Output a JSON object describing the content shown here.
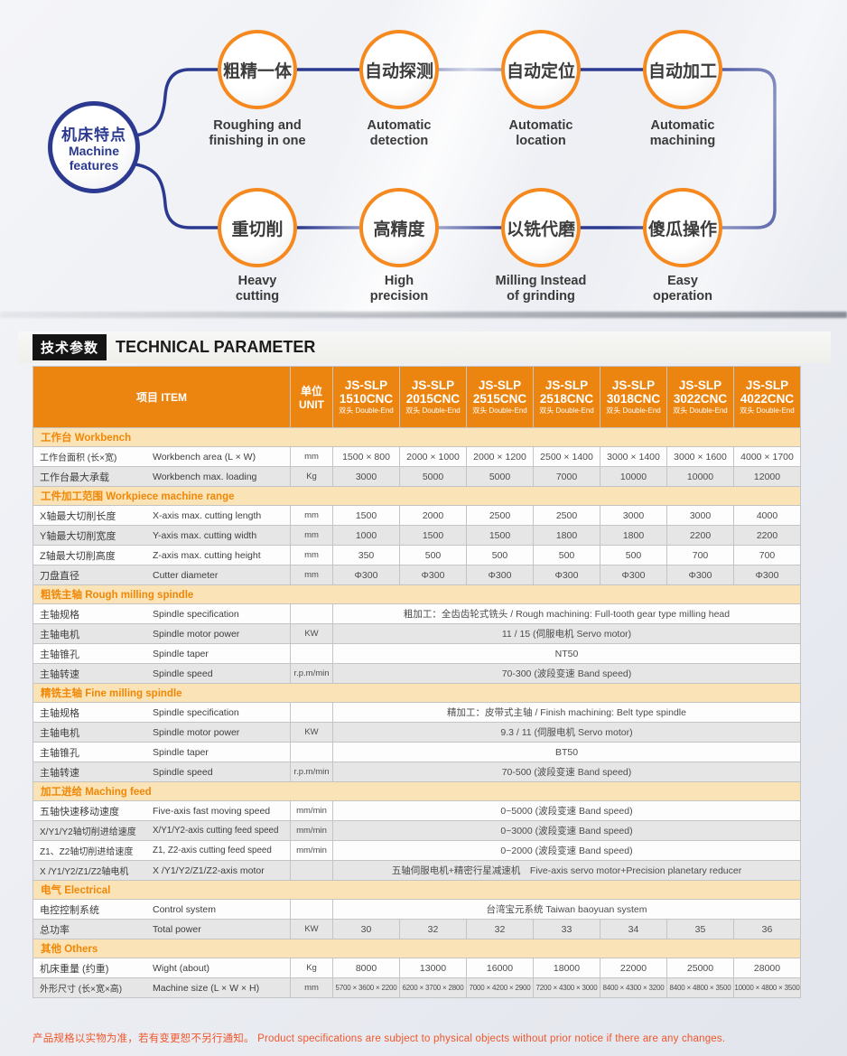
{
  "diagram": {
    "root": {
      "title_zh": "机床特点",
      "title_en_lines": [
        "Machine",
        "features"
      ]
    },
    "features": [
      {
        "zh": "粗精一体",
        "en_lines": [
          "Roughing and",
          "finishing in one"
        ]
      },
      {
        "zh": "自动探测",
        "en_lines": [
          "Automatic",
          "detection"
        ]
      },
      {
        "zh": "自动定位",
        "en_lines": [
          "Automatic",
          "location"
        ]
      },
      {
        "zh": "自动加工",
        "en_lines": [
          "Automatic",
          "machining"
        ]
      },
      {
        "zh": "重切削",
        "en_lines": [
          "Heavy",
          "cutting"
        ]
      },
      {
        "zh": "高精度",
        "en_lines": [
          "High",
          "precision"
        ]
      },
      {
        "zh": "以铣代磨",
        "en_lines": [
          "Milling Instead",
          "of grinding"
        ]
      },
      {
        "zh": "傻瓜操作",
        "en_lines": [
          "Easy",
          "operation"
        ]
      }
    ],
    "colors": {
      "root_blue": "#2B3990",
      "feature_orange": "#F6891E"
    }
  },
  "section_title": {
    "zh": "技术参数",
    "en": "TECHNICAL PARAMETER"
  },
  "table": {
    "item_header": "项目 ITEM",
    "unit_header_zh": "单位",
    "unit_header_en": "UNIT",
    "model_prefix": "JS-SLP",
    "model_sub": "双头 Double-End",
    "models": [
      "1510CNC",
      "2015CNC",
      "2515CNC",
      "2518CNC",
      "3018CNC",
      "3022CNC",
      "4022CNC"
    ],
    "header_color": "#EC8510",
    "sections": [
      {
        "title": "工作台 Workbench",
        "rows": [
          {
            "zh": "工作台面积 (长×宽)",
            "en": "Workbench area (L × W)",
            "unit": "mm",
            "values": [
              "1500 × 800",
              "2000 × 1000",
              "2000 × 1200",
              "2500 × 1400",
              "3000 × 1400",
              "3000 × 1600",
              "4000 × 1700"
            ]
          },
          {
            "zh": "工作台最大承载",
            "en": "Workbench max. loading",
            "unit": "Kg",
            "values": [
              "3000",
              "5000",
              "5000",
              "7000",
              "10000",
              "10000",
              "12000"
            ]
          }
        ]
      },
      {
        "title": "工件加工范围 Workpiece machine range",
        "rows": [
          {
            "zh": "X轴最大切削长度",
            "en": "X-axis max. cutting length",
            "unit": "mm",
            "values": [
              "1500",
              "2000",
              "2500",
              "2500",
              "3000",
              "3000",
              "4000"
            ]
          },
          {
            "zh": "Y轴最大切削宽度",
            "en": "Y-axis max. cutting width",
            "unit": "mm",
            "values": [
              "1000",
              "1500",
              "1500",
              "1800",
              "1800",
              "2200",
              "2200"
            ]
          },
          {
            "zh": "Z轴最大切削高度",
            "en": "Z-axis max. cutting height",
            "unit": "mm",
            "values": [
              "350",
              "500",
              "500",
              "500",
              "500",
              "700",
              "700"
            ]
          },
          {
            "zh": "刀盘直径",
            "en": "Cutter diameter",
            "unit": "mm",
            "values": [
              "Φ300",
              "Φ300",
              "Φ300",
              "Φ300",
              "Φ300",
              "Φ300",
              "Φ300"
            ]
          }
        ]
      },
      {
        "title": "粗铣主轴 Rough milling spindle",
        "rows": [
          {
            "zh": "主轴规格",
            "en": "Spindle specification",
            "unit": "",
            "span": "粗加工：全齿齿轮式铣头 / Rough machining: Full-tooth gear type milling head"
          },
          {
            "zh": "主轴电机",
            "en": "Spindle motor power",
            "unit": "KW",
            "span": "11 / 15 (伺服电机  Servo motor)"
          },
          {
            "zh": "主轴锥孔",
            "en": "Spindle taper",
            "unit": "",
            "span": "NT50"
          },
          {
            "zh": "主轴转速",
            "en": "Spindle speed",
            "unit": "r.p.m/min",
            "span": "70-300 (波段变速  Band speed)"
          }
        ]
      },
      {
        "title": "精铣主轴 Fine milling spindle",
        "rows": [
          {
            "zh": "主轴规格",
            "en": "Spindle specification",
            "unit": "",
            "span": "精加工：皮带式主轴 /  Finish machining: Belt type spindle"
          },
          {
            "zh": "主轴电机",
            "en": "Spindle motor power",
            "unit": "KW",
            "span": "9.3 / 11 (伺服电机  Servo motor)"
          },
          {
            "zh": "主轴锥孔",
            "en": "Spindle taper",
            "unit": "",
            "span": "BT50"
          },
          {
            "zh": "主轴转速",
            "en": "Spindle speed",
            "unit": "r.p.m/min",
            "span": "70-500 (波段变速  Band speed)"
          }
        ]
      },
      {
        "title": "加工进给 Maching feed",
        "rows": [
          {
            "zh": "五轴快速移动速度",
            "en": "Five-axis fast moving speed",
            "unit": "mm/min",
            "span": "0~5000 (波段变速 Band speed)"
          },
          {
            "zh": "X/Y1/Y2轴切削进给速度",
            "en": "X/Y1/Y2-axis cutting feed speed",
            "unit": "mm/min",
            "span": "0~3000 (波段变速 Band speed)"
          },
          {
            "zh": "Z1、Z2轴切削进给速度",
            "en": "Z1, Z2-axis cutting feed speed",
            "unit": "mm/min",
            "span": "0~2000 (波段变速 Band speed)"
          },
          {
            "zh": "X /Y1/Y2/Z1/Z2轴电机",
            "en": "X /Y1/Y2/Z1/Z2-axis motor",
            "unit": "",
            "span": "五轴伺服电机+精密行星减速机　Five-axis servo motor+Precision planetary reducer"
          }
        ]
      },
      {
        "title": "电气 Electrical",
        "rows": [
          {
            "zh": "电控控制系统",
            "en": "Control system",
            "unit": "",
            "span": "台湾宝元系统  Taiwan baoyuan system"
          },
          {
            "zh": "总功率",
            "en": "Total power",
            "unit": "KW",
            "values": [
              "30",
              "32",
              "32",
              "33",
              "34",
              "35",
              "36"
            ]
          }
        ]
      },
      {
        "title": "其他 Others",
        "rows": [
          {
            "zh": "机床重量 (约重)",
            "en": "Wight (about)",
            "unit": "Kg",
            "values": [
              "8000",
              "13000",
              "16000",
              "18000",
              "22000",
              "25000",
              "28000"
            ]
          },
          {
            "zh": "外形尺寸 (长×宽×高)",
            "en": "Machine size  (L × W × H)",
            "unit": "mm",
            "values": [
              "5700 × 3600 × 2200",
              "6200 × 3700 × 2800",
              "7000 × 4200 × 2900",
              "7200 × 4300 × 3000",
              "8400 × 4300 × 3200",
              "8400 × 4800 × 3500",
              "10000 × 4800 × 3500"
            ]
          }
        ]
      }
    ]
  },
  "footer": "产品规格以实物为准，若有变更恕不另行通知。 Product specifications are subject to physical objects without prior notice if there are any changes."
}
